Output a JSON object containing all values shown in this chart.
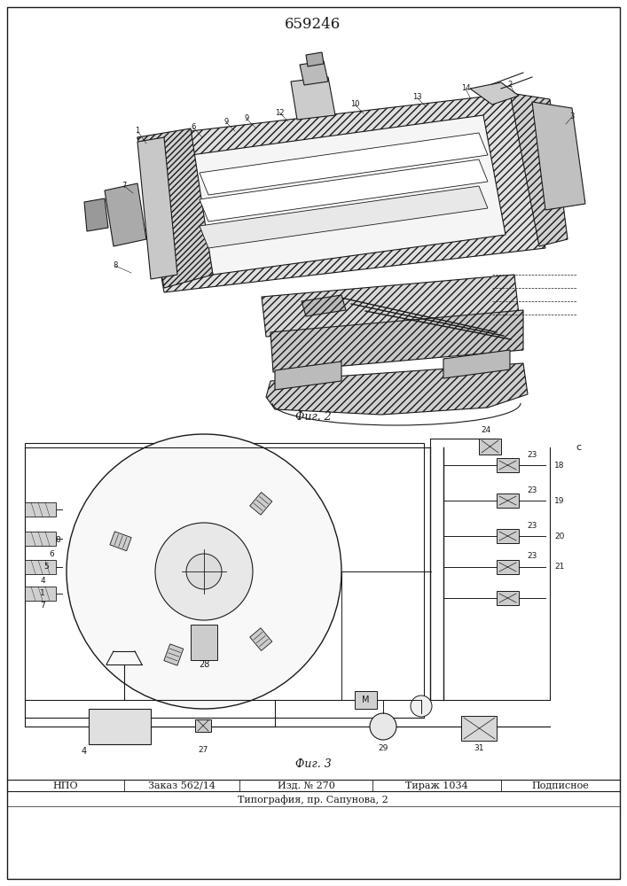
{
  "title": "659246",
  "title_fontsize": 12,
  "fig1_caption": "Фиг. 2",
  "fig2_caption": "Фиг. 3",
  "footer_cols": [
    "НПО",
    "Заказ 562/14",
    "Изд. № 270",
    "Тираж 1034",
    "Подписное"
  ],
  "footer_line2": "Типография, пр. Сапунова, 2",
  "footer_fontsize": 8,
  "bg_color": "#ffffff",
  "line_color": "#1a1a1a",
  "hatch_color": "#333333",
  "light_gray": "#e8e8e8",
  "mid_gray": "#c0c0c0",
  "dark_gray": "#888888"
}
